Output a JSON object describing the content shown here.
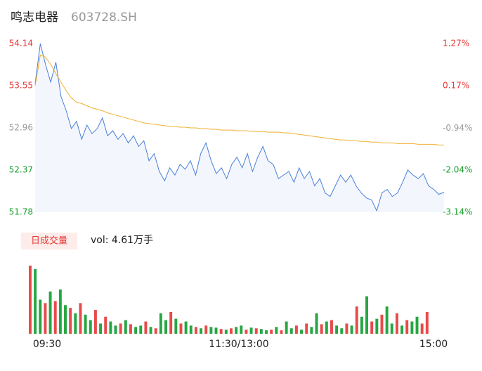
{
  "header": {
    "name": "鸣志电器",
    "code": "603728.SH"
  },
  "chart_data": [
    {
      "type": "line",
      "ylim": [
        51.78,
        54.14
      ],
      "yticks": [
        54.14,
        53.55,
        52.96,
        52.37,
        51.78
      ],
      "y2lim": [
        -3.14,
        1.27
      ],
      "y2ticks": [
        {
          "value": 1.27,
          "label": "1.27%"
        },
        {
          "value": 0.17,
          "label": "0.17%"
        },
        {
          "value": -0.94,
          "label": "-0.94%"
        },
        {
          "value": -2.04,
          "label": "-2.04%"
        },
        {
          "value": -3.14,
          "label": "-3.14%"
        }
      ],
      "series": [
        {
          "color": "#4a7fd9",
          "values": [
            53.58,
            54.14,
            53.85,
            53.6,
            53.88,
            53.4,
            53.2,
            52.95,
            53.05,
            52.8,
            53.0,
            52.88,
            52.95,
            53.1,
            52.85,
            52.92,
            52.8,
            52.88,
            52.75,
            52.85,
            52.7,
            52.78,
            52.5,
            52.6,
            52.35,
            52.22,
            52.4,
            52.3,
            52.45,
            52.38,
            52.5,
            52.3,
            52.6,
            52.75,
            52.5,
            52.32,
            52.4,
            52.25,
            52.45,
            52.55,
            52.4,
            52.6,
            52.35,
            52.55,
            52.7,
            52.5,
            52.45,
            52.25,
            52.3,
            52.35,
            52.2,
            52.4,
            52.25,
            52.35,
            52.15,
            52.25,
            52.05,
            52.0,
            52.15,
            52.3,
            52.2,
            52.3,
            52.15,
            52.05,
            51.98,
            51.95,
            51.8,
            52.05,
            52.1,
            52.0,
            52.05,
            52.2,
            52.37,
            52.3,
            52.25,
            52.32,
            52.15,
            52.1,
            52.03,
            52.06
          ]
        },
        {
          "color": "#f0b030",
          "values": [
            53.55,
            53.98,
            53.95,
            53.85,
            53.72,
            53.6,
            53.48,
            53.38,
            53.32,
            53.3,
            53.27,
            53.24,
            53.22,
            53.2,
            53.17,
            53.15,
            53.13,
            53.11,
            53.09,
            53.07,
            53.05,
            53.03,
            53.02,
            53.01,
            53.0,
            52.99,
            52.98,
            52.98,
            52.97,
            52.97,
            52.96,
            52.96,
            52.95,
            52.95,
            52.94,
            52.94,
            52.93,
            52.93,
            52.93,
            52.92,
            52.92,
            52.92,
            52.91,
            52.91,
            52.91,
            52.9,
            52.9,
            52.9,
            52.89,
            52.89,
            52.88,
            52.87,
            52.86,
            52.85,
            52.84,
            52.83,
            52.82,
            52.81,
            52.8,
            52.79,
            52.79,
            52.78,
            52.78,
            52.77,
            52.77,
            52.76,
            52.76,
            52.75,
            52.75,
            52.75,
            52.74,
            52.74,
            52.74,
            52.74,
            52.73,
            52.73,
            52.73,
            52.73,
            52.72,
            52.72
          ]
        }
      ]
    },
    {
      "type": "bar",
      "title": "日成交量",
      "annotation": "vol: 4.61万手",
      "ylim": [
        0,
        100
      ],
      "xticks": [
        "09:30",
        "11:30/13:00",
        "15:00"
      ],
      "values": [
        100,
        95,
        50,
        45,
        62,
        48,
        65,
        42,
        38,
        30,
        45,
        28,
        20,
        35,
        15,
        25,
        18,
        12,
        15,
        20,
        14,
        10,
        12,
        18,
        10,
        8,
        30,
        20,
        32,
        22,
        15,
        18,
        12,
        10,
        8,
        12,
        10,
        9,
        7,
        6,
        8,
        10,
        12,
        6,
        9,
        8,
        7,
        5,
        6,
        10,
        5,
        18,
        8,
        12,
        6,
        15,
        10,
        30,
        14,
        18,
        20,
        12,
        8,
        15,
        12,
        40,
        25,
        55,
        18,
        22,
        28,
        40,
        15,
        30,
        12,
        20,
        18,
        25,
        15,
        32
      ],
      "colors": [
        "#e84a4a",
        "#26a642",
        "#26a642",
        "#e84a4a",
        "#26a642",
        "#e84a4a",
        "#26a642",
        "#26a642",
        "#e84a4a",
        "#26a642",
        "#e84a4a",
        "#26a642",
        "#26a642",
        "#e84a4a",
        "#26a642",
        "#e84a4a",
        "#26a642",
        "#26a642",
        "#e84a4a",
        "#26a642",
        "#e84a4a",
        "#26a642",
        "#26a642",
        "#e84a4a",
        "#26a642",
        "#e84a4a",
        "#26a642",
        "#26a642",
        "#e84a4a",
        "#26a642",
        "#e84a4a",
        "#26a642",
        "#26a642",
        "#e84a4a",
        "#26a642",
        "#e84a4a",
        "#26a642",
        "#26a642",
        "#e84a4a",
        "#26a642",
        "#e84a4a",
        "#26a642",
        "#26a642",
        "#e84a4a",
        "#26a642",
        "#e84a4a",
        "#26a642",
        "#26a642",
        "#e84a4a",
        "#26a642",
        "#e84a4a",
        "#26a642",
        "#26a642",
        "#e84a4a",
        "#26a642",
        "#e84a4a",
        "#26a642",
        "#26a642",
        "#e84a4a",
        "#26a642",
        "#e84a4a",
        "#26a642",
        "#26a642",
        "#e84a4a",
        "#26a642",
        "#e84a4a",
        "#26a642",
        "#26a642",
        "#e84a4a",
        "#26a642",
        "#e84a4a",
        "#26a642",
        "#26a642",
        "#e84a4a",
        "#26a642",
        "#e84a4a",
        "#26a642",
        "#26a642",
        "#e84a4a",
        "#e84a4a"
      ]
    }
  ]
}
